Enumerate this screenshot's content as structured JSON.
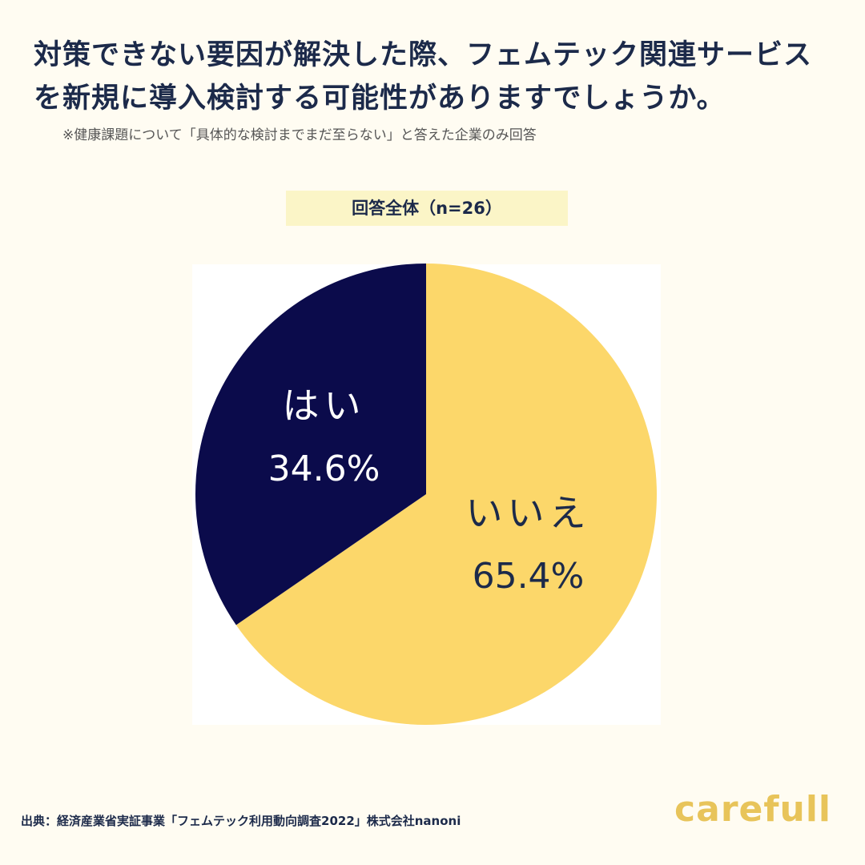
{
  "chart_data": {
    "type": "pie",
    "title": "対策できない要因が解決した際、フェムテック関連サービスを新規に導入検討する可能性がありますでしょうか。",
    "subtitle": "※健康課題について「具体的な検討までまだ至らない」と答えた企業のみ回答",
    "group_label": "回答全体（n=26）",
    "categories": [
      "いいえ",
      "はい"
    ],
    "values": [
      65.4,
      34.6
    ],
    "value_labels": [
      "65.4%",
      "34.6%"
    ],
    "colors": [
      "#fcd76a",
      "#0b0b4b"
    ],
    "label_colors": [
      "#1c2a4a",
      "#ffffff"
    ],
    "source": "出典：経済産業省実証事業「フェムテック利用動向調査2022」株式会社nanoni",
    "logo": "carefull"
  }
}
